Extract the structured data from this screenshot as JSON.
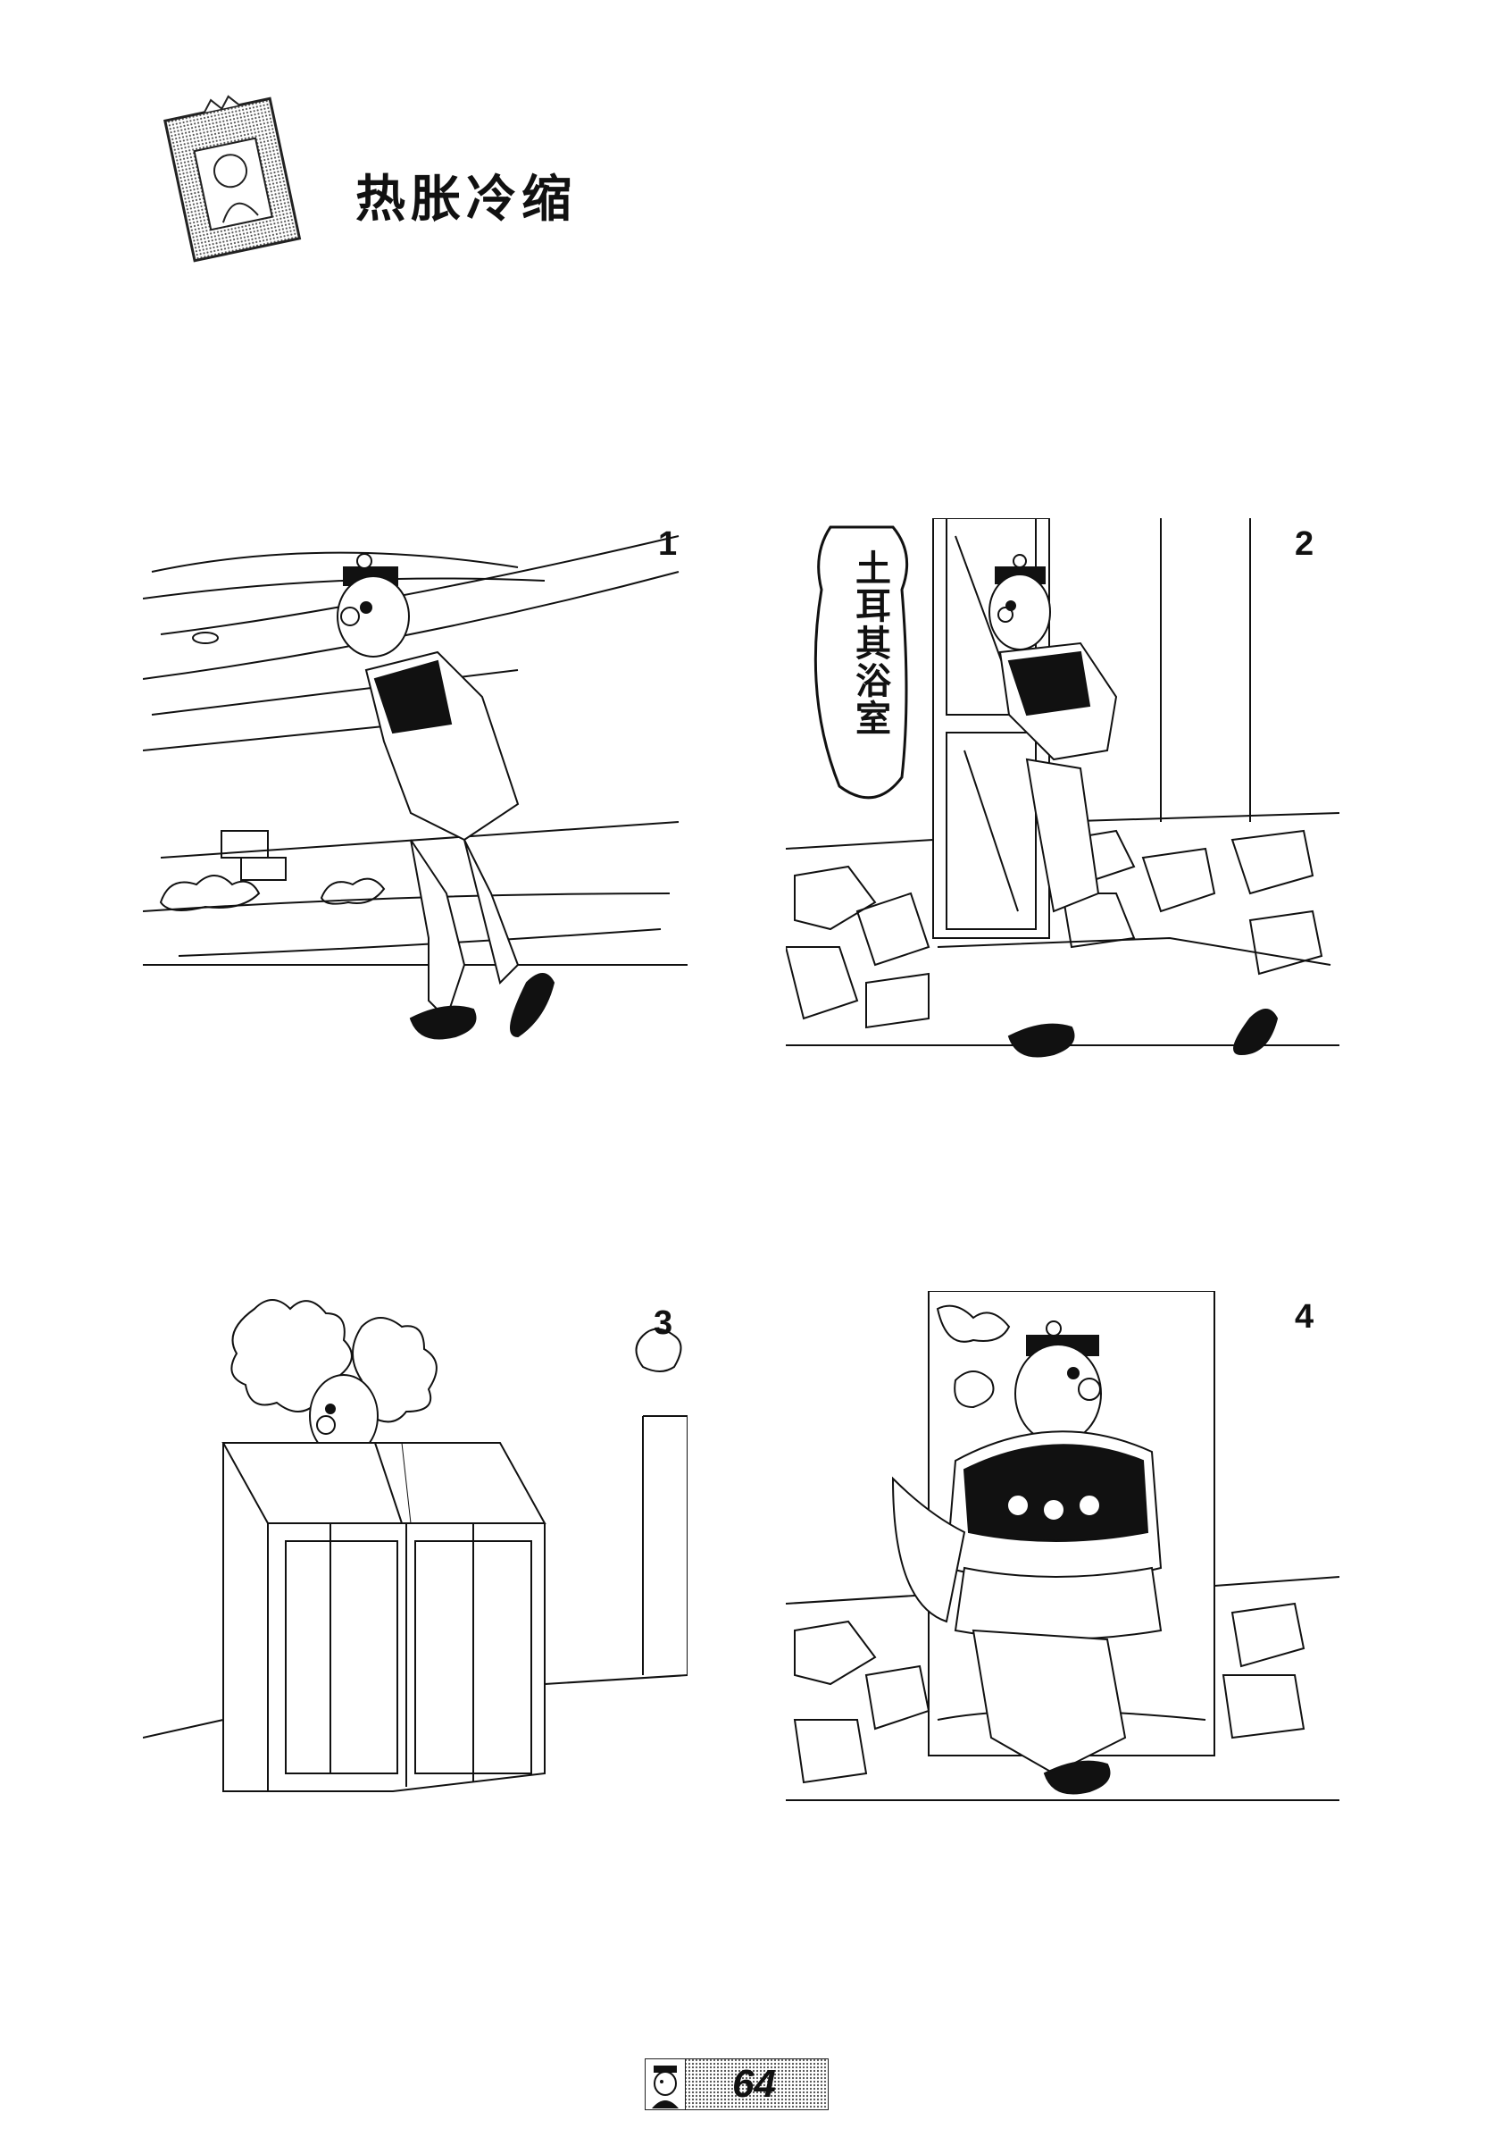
{
  "page": {
    "title": "热胀冷缩",
    "page_number": "64"
  },
  "panels": [
    {
      "number": "1"
    },
    {
      "number": "2",
      "sign_text": "土耳其浴室"
    },
    {
      "number": "3"
    },
    {
      "number": "4"
    }
  ],
  "icons": {
    "header_badge": "portrait-card-icon",
    "footer_badge": "character-face-icon"
  }
}
